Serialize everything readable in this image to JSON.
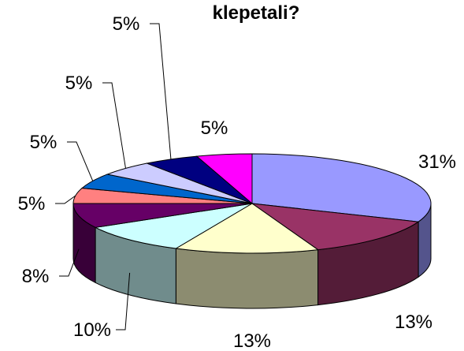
{
  "chart_data": {
    "type": "pie3d",
    "title": "klepetali?",
    "values": [
      31,
      13,
      13,
      10,
      8,
      5,
      5,
      5,
      5,
      5
    ],
    "value_labels": [
      "31%",
      "13%",
      "13%",
      "10%",
      "8%",
      "5%",
      "5%",
      "5%",
      "5%",
      "5%"
    ],
    "colors": [
      "#9999ff",
      "#993366",
      "#ffffcc",
      "#ccffff",
      "#660066",
      "#ff8080",
      "#0066cc",
      "#ccccff",
      "#000080",
      "#ff00ff"
    ]
  }
}
